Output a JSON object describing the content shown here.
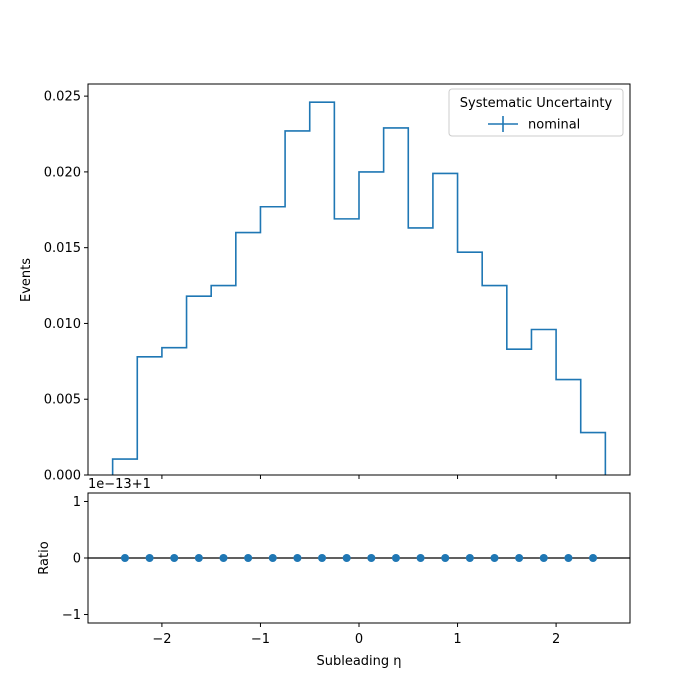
{
  "chart_data": [
    {
      "type": "step-histogram",
      "ylabel": "Events",
      "xlim": [
        -2.75,
        2.75
      ],
      "ylim": [
        0,
        0.0258
      ],
      "x_ticks": [
        -2,
        -1,
        0,
        1,
        2
      ],
      "y_ticks": [
        0.0,
        0.005,
        0.01,
        0.015,
        0.02,
        0.025
      ],
      "y_tick_labels": [
        "0.000",
        "0.005",
        "0.010",
        "0.015",
        "0.020",
        "0.025"
      ],
      "bin_edges": [
        -2.5,
        -2.25,
        -2.0,
        -1.75,
        -1.5,
        -1.25,
        -1.0,
        -0.75,
        -0.5,
        -0.25,
        0.0,
        0.25,
        0.5,
        0.75,
        1.0,
        1.25,
        1.5,
        1.75,
        2.0,
        2.25,
        2.5
      ],
      "series": [
        {
          "name": "nominal",
          "color": "#1f77b4",
          "values": [
            0.00105,
            0.0078,
            0.0084,
            0.0118,
            0.0125,
            0.016,
            0.0177,
            0.0227,
            0.0246,
            0.0169,
            0.02,
            0.0229,
            0.0163,
            0.0199,
            0.0147,
            0.0125,
            0.0083,
            0.0096,
            0.0063,
            0.0028
          ]
        }
      ],
      "legend": {
        "title": "Systematic Uncertainty",
        "placement": "top-right",
        "entries": [
          "nominal"
        ]
      }
    },
    {
      "type": "scatter",
      "xlabel": "Subleading η",
      "ylabel": "Ratio",
      "offset_label": "1e−13+1",
      "xlim": [
        -2.75,
        2.75
      ],
      "ylim": [
        -1.15,
        1.15
      ],
      "x_ticks": [
        -2,
        -1,
        0,
        1,
        2
      ],
      "x_tick_labels": [
        "−2",
        "−1",
        "0",
        "1",
        "2"
      ],
      "y_ticks": [
        -1,
        0,
        1
      ],
      "y_tick_labels": [
        "−1",
        "0",
        "1"
      ],
      "reference_line": 0,
      "series": [
        {
          "color": "#1f77b4",
          "x": [
            -2.375,
            -2.125,
            -1.875,
            -1.625,
            -1.375,
            -1.125,
            -0.875,
            -0.625,
            -0.375,
            -0.125,
            0.125,
            0.375,
            0.625,
            0.875,
            1.125,
            1.375,
            1.625,
            1.875,
            2.125,
            2.375
          ],
          "y": [
            0,
            0,
            0,
            0,
            0,
            0,
            0,
            0,
            0,
            0,
            0,
            0,
            0,
            0,
            0,
            0,
            0,
            0,
            0,
            0
          ]
        }
      ]
    }
  ]
}
